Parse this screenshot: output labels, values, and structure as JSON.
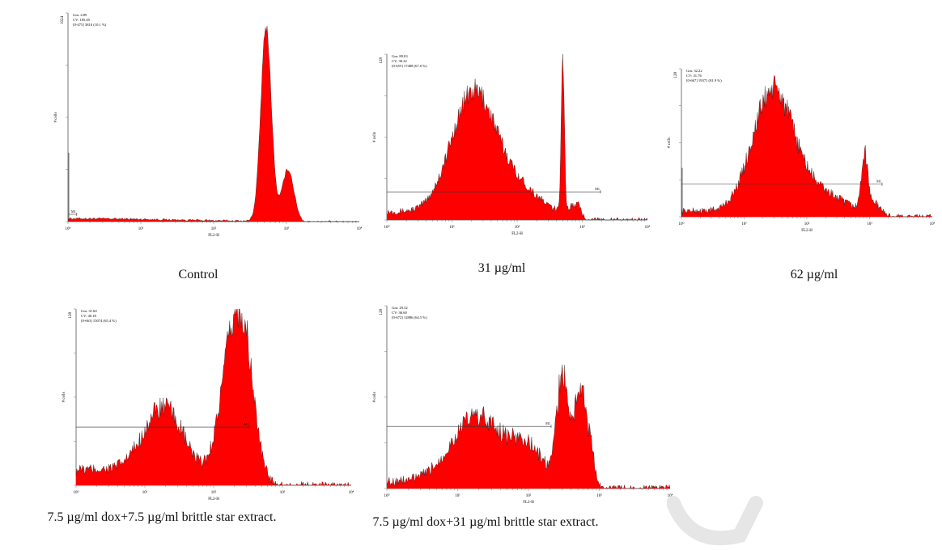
{
  "chart_data": [
    {
      "type": "area",
      "caption": "Control",
      "ylabel": "# cells",
      "xlabel": "FL2-H",
      "ymax_label": "1024",
      "stats": [
        "Gm: 4.89",
        "CV: 185.05",
        "[0-475] 3810 (10.1 %)"
      ],
      "marker_label": "M1",
      "color": "#ff0000",
      "xlog_decades": [
        "10⁰",
        "10¹",
        "10²",
        "10³",
        "10⁴"
      ],
      "peaks": [
        [
          0.0,
          0.015,
          0.35
        ],
        [
          0.68,
          0.93,
          0.018
        ],
        [
          0.755,
          0.25,
          0.02
        ]
      ],
      "noise": 0.015,
      "xmax_fill": 0.8,
      "spike_first": true,
      "marker": [
        0.0,
        0.03
      ]
    },
    {
      "type": "area",
      "caption": "31 µg/ml",
      "ylabel": "# cells",
      "xlabel": "FL2-H",
      "ymax_label": "128",
      "stats": [
        "Gm: 89.03",
        "CV: 30.22",
        "[0-655] 17488 (67.0 %)"
      ],
      "marker_label": "M1",
      "color": "#ff0000",
      "xlog_decades": [
        "10⁰",
        "10¹",
        "10²",
        "10³",
        "10⁴"
      ],
      "peaks": [
        [
          0.02,
          0.05,
          0.2
        ],
        [
          0.33,
          0.72,
          0.085
        ],
        [
          0.5,
          0.18,
          0.1
        ],
        [
          0.675,
          0.98,
          0.006
        ],
        [
          0.73,
          0.08,
          0.03
        ]
      ],
      "noise": 0.05,
      "xmax_fill": 0.74,
      "spike_first": false,
      "marker": [
        0.0,
        0.82
      ]
    },
    {
      "type": "area",
      "caption": "62 µg/ml",
      "ylabel": "# cells",
      "xlabel": "FL2-H",
      "ymax_label": "128",
      "stats": [
        "Gm: 32.22",
        "CV: 31.76",
        "[0-667] 19371 (81.9 %)"
      ],
      "marker_label": "M1",
      "color": "#ff0000",
      "xlog_decades": [
        "10⁰",
        "10¹",
        "10²",
        "10³",
        "10⁴"
      ],
      "peaks": [
        [
          0.03,
          0.04,
          0.2
        ],
        [
          0.36,
          0.78,
          0.08
        ],
        [
          0.52,
          0.18,
          0.12
        ],
        [
          0.73,
          0.35,
          0.012
        ],
        [
          0.76,
          0.08,
          0.03
        ]
      ],
      "noise": 0.06,
      "xmax_fill": 0.82,
      "spike_first": true,
      "marker": [
        0.0,
        0.8
      ]
    },
    {
      "type": "area",
      "caption": "7.5 µg/ml dox+7.5 µg/ml brittle star extract.",
      "ylabel": "# cells",
      "xlabel": "FL2-H",
      "ymax_label": "128",
      "stats": [
        "Gm: 31.60",
        "CV: 40.18",
        "[0-663] 15074 (65.4 %)"
      ],
      "marker_label": "M1",
      "color": "#ff0000",
      "xlog_decades": [
        "10⁰",
        "10¹",
        "10²",
        "10³",
        "10⁴"
      ],
      "peaks": [
        [
          0.05,
          0.09,
          0.22
        ],
        [
          0.32,
          0.4,
          0.075
        ],
        [
          0.58,
          0.9,
          0.05
        ],
        [
          0.62,
          0.2,
          0.03
        ]
      ],
      "noise": 0.07,
      "xmax_fill": 0.72,
      "spike_first": false,
      "marker": [
        0.0,
        0.63
      ]
    },
    {
      "type": "area",
      "caption": "7.5 µg/ml dox+31 µg/ml brittle star extract.",
      "ylabel": "# cells",
      "xlabel": "FL2-H",
      "ymax_label": "128",
      "stats": [
        "Gm: 29.32",
        "CV: 36.60",
        "[0-672] 12886 (64.5 %)"
      ],
      "marker_label": "M1",
      "color": "#ff0000",
      "xlog_decades": [
        "10⁰",
        "10¹",
        "10²",
        "10³",
        "10⁴"
      ],
      "peaks": [
        [
          0.05,
          0.04,
          0.2
        ],
        [
          0.32,
          0.38,
          0.09
        ],
        [
          0.5,
          0.2,
          0.06
        ],
        [
          0.62,
          0.6,
          0.02
        ],
        [
          0.68,
          0.53,
          0.02
        ],
        [
          0.72,
          0.2,
          0.02
        ]
      ],
      "noise": 0.07,
      "xmax_fill": 0.73,
      "spike_first": false,
      "marker": [
        0.0,
        0.58
      ]
    }
  ]
}
